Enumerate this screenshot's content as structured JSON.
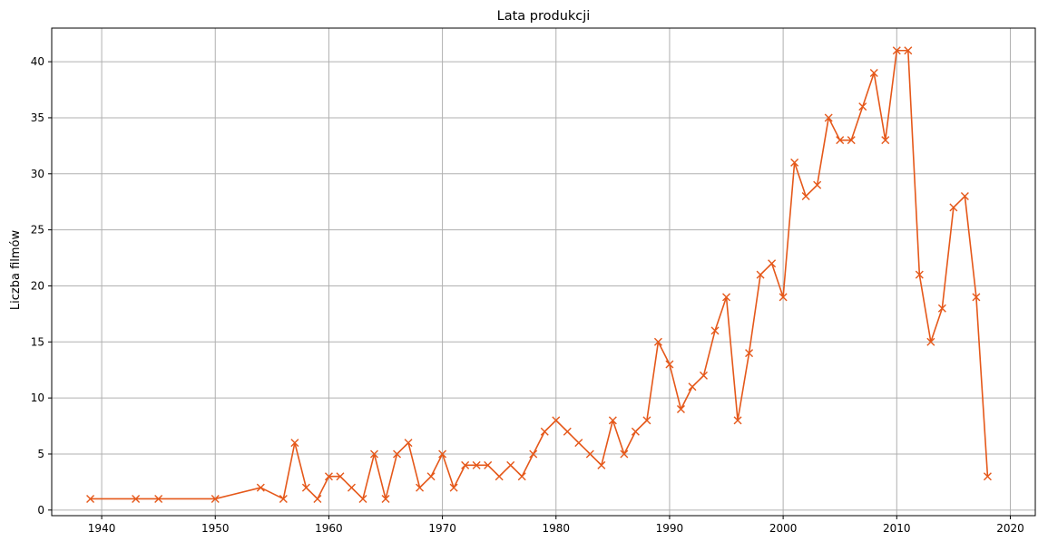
{
  "chart_data": {
    "type": "line",
    "title": "Lata produkcji",
    "xlabel": "",
    "ylabel": "Liczba filmów",
    "xlim": [
      1935.6,
      2022.2
    ],
    "ylim": [
      -0.5,
      43.0
    ],
    "xticks": [
      1940,
      1950,
      1960,
      1970,
      1980,
      1990,
      2000,
      2010,
      2020
    ],
    "yticks": [
      0,
      5,
      10,
      15,
      20,
      25,
      30,
      35,
      40
    ],
    "grid": true,
    "marker": "x",
    "color": "#e5581a",
    "x": [
      1939,
      1943,
      1945,
      1950,
      1954,
      1956,
      1957,
      1958,
      1959,
      1960,
      1961,
      1962,
      1963,
      1964,
      1965,
      1966,
      1967,
      1968,
      1969,
      1970,
      1971,
      1972,
      1973,
      1974,
      1975,
      1976,
      1977,
      1978,
      1979,
      1980,
      1981,
      1982,
      1983,
      1984,
      1985,
      1986,
      1987,
      1988,
      1989,
      1990,
      1991,
      1992,
      1993,
      1994,
      1995,
      1996,
      1997,
      1998,
      1999,
      2000,
      2001,
      2002,
      2003,
      2004,
      2005,
      2006,
      2007,
      2008,
      2009,
      2010,
      2011,
      2012,
      2013,
      2014,
      2015,
      2016,
      2017,
      2018
    ],
    "y": [
      1,
      1,
      1,
      1,
      2,
      1,
      6,
      2,
      1,
      3,
      3,
      2,
      1,
      5,
      1,
      5,
      6,
      2,
      3,
      5,
      2,
      4,
      4,
      4,
      3,
      4,
      3,
      5,
      7,
      8,
      7,
      6,
      5,
      4,
      8,
      5,
      7,
      8,
      15,
      13,
      9,
      11,
      12,
      16,
      19,
      8,
      14,
      21,
      22,
      19,
      31,
      28,
      29,
      35,
      33,
      33,
      36,
      39,
      33,
      41,
      41,
      21,
      15,
      18,
      27,
      28,
      19,
      3
    ]
  }
}
